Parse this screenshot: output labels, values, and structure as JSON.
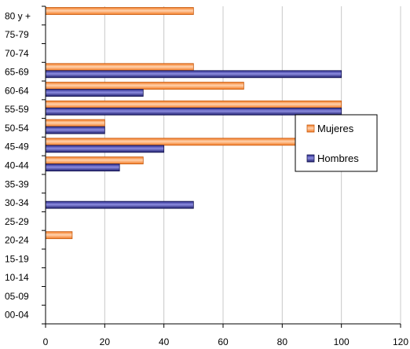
{
  "chart_data": {
    "type": "bar",
    "orientation": "horizontal",
    "categories": [
      "80 y +",
      "75-79",
      "70-74",
      "65-69",
      "60-64",
      "55-59",
      "50-54",
      "45-49",
      "40-44",
      "35-39",
      "30-34",
      "25-29",
      "20-24",
      "15-19",
      "10-14",
      "05-09",
      "00-04"
    ],
    "series": [
      {
        "name": "Mujeres",
        "color": "#f47a22",
        "values": [
          50,
          0,
          0,
          50,
          67,
          100,
          20,
          87,
          33,
          0,
          0,
          0,
          9,
          0,
          0,
          0,
          0
        ]
      },
      {
        "name": "Hombres",
        "color": "#2b2b8c",
        "values": [
          0,
          0,
          0,
          100,
          33,
          100,
          20,
          40,
          25,
          0,
          50,
          0,
          0,
          0,
          0,
          0,
          0
        ]
      }
    ],
    "xlim": [
      0,
      120
    ],
    "xticks": [
      0,
      20,
      40,
      60,
      80,
      100,
      120
    ],
    "grid": true,
    "legend": "right"
  }
}
